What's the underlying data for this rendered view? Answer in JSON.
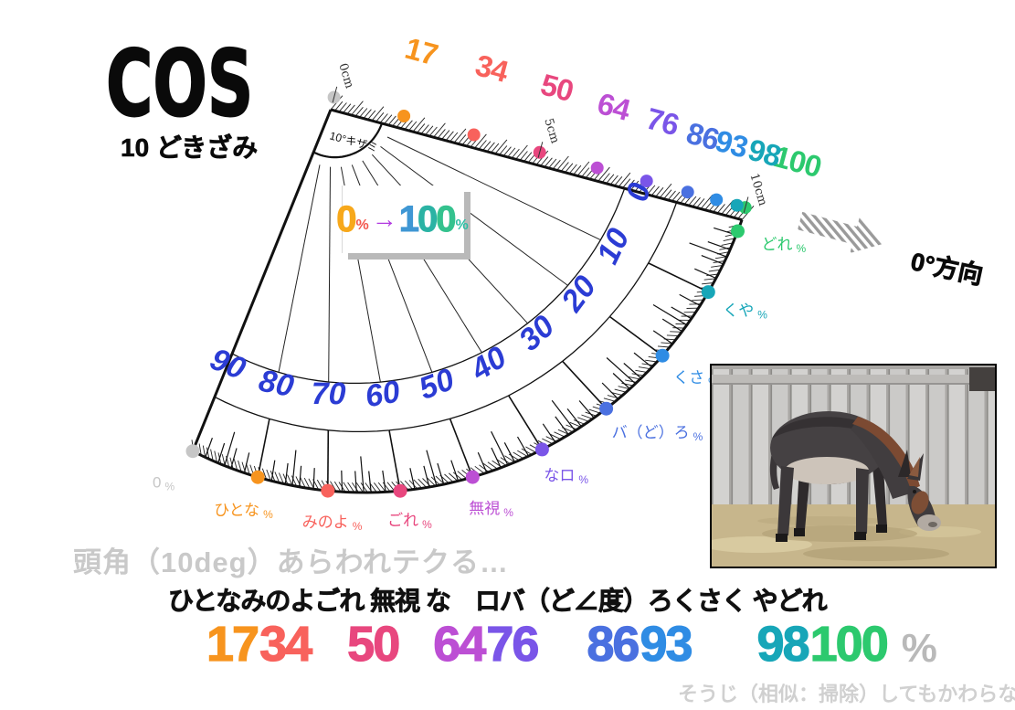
{
  "title": "COS",
  "subtitle": "10 どきざみ",
  "legend": {
    "from": "0",
    "from_unit": "%",
    "arrow": "→",
    "to": "100",
    "to_unit": "%",
    "from_color": "#F7A81B",
    "from_unit_color": "#F3574D",
    "arrow_color": "#B23AE0",
    "to_colors": [
      "#3F97D4",
      "#2BB3A4",
      "#34C28E"
    ],
    "to_unit_color": "#2EBFA5"
  },
  "direction": {
    "label": "0°方向"
  },
  "protractor": {
    "step_note": "10°キザミ",
    "scale_color": "#2B3CD4",
    "unit": "%",
    "cm_marks": [
      {
        "label": "0cm",
        "at": 0
      },
      {
        "label": "5cm",
        "at": 50
      },
      {
        "label": "10cm",
        "at": 100
      }
    ],
    "points": [
      {
        "angle": 0,
        "cos_pct": 100,
        "word": "どれ",
        "color": "#2CC96E"
      },
      {
        "angle": 10,
        "cos_pct": 98,
        "word": "くや",
        "color": "#17A6B8"
      },
      {
        "angle": 20,
        "cos_pct": 93,
        "word": "くさ",
        "color": "#2F8CE4"
      },
      {
        "angle": 30,
        "cos_pct": 86,
        "word": "バ（ど）ろ",
        "color": "#4A70E0"
      },
      {
        "angle": 40,
        "cos_pct": 76,
        "word": "なロ",
        "color": "#7A55E8"
      },
      {
        "angle": 50,
        "cos_pct": 64,
        "word": "無視",
        "color": "#BC4FD4"
      },
      {
        "angle": 60,
        "cos_pct": 50,
        "word": "ごれ",
        "color": "#E8477E"
      },
      {
        "angle": 70,
        "cos_pct": 34,
        "word": "みのよ",
        "color": "#F8625C"
      },
      {
        "angle": 80,
        "cos_pct": 17,
        "word": "ひとな",
        "color": "#F7941E"
      },
      {
        "angle": 90,
        "cos_pct": 0,
        "word": "0",
        "color": "#C6C6C6"
      }
    ]
  },
  "footer": {
    "hint": "頭角（10deg）あらわれテクる…",
    "mnemonic": "ひとなみのよごれ 無視 な　ロバ（ど∠度）ろくさく やどれ",
    "values": [
      {
        "text": "17",
        "color": "#F7941E"
      },
      {
        "text": "34",
        "color": "#F8625C"
      },
      {
        "text": "50",
        "color": "#E8477E"
      },
      {
        "text": "64",
        "color": "#BC4FD4"
      },
      {
        "text": "76",
        "color": "#7A55E8"
      },
      {
        "text": "86",
        "color": "#4A70E0"
      },
      {
        "text": "93",
        "color": "#2F8CE4"
      },
      {
        "text": "98",
        "color": "#17A6B8"
      },
      {
        "text": "100",
        "color": "#2CC96E"
      }
    ],
    "unit": "%",
    "note": "そうじ（相似：掃除）してもかわらない"
  }
}
